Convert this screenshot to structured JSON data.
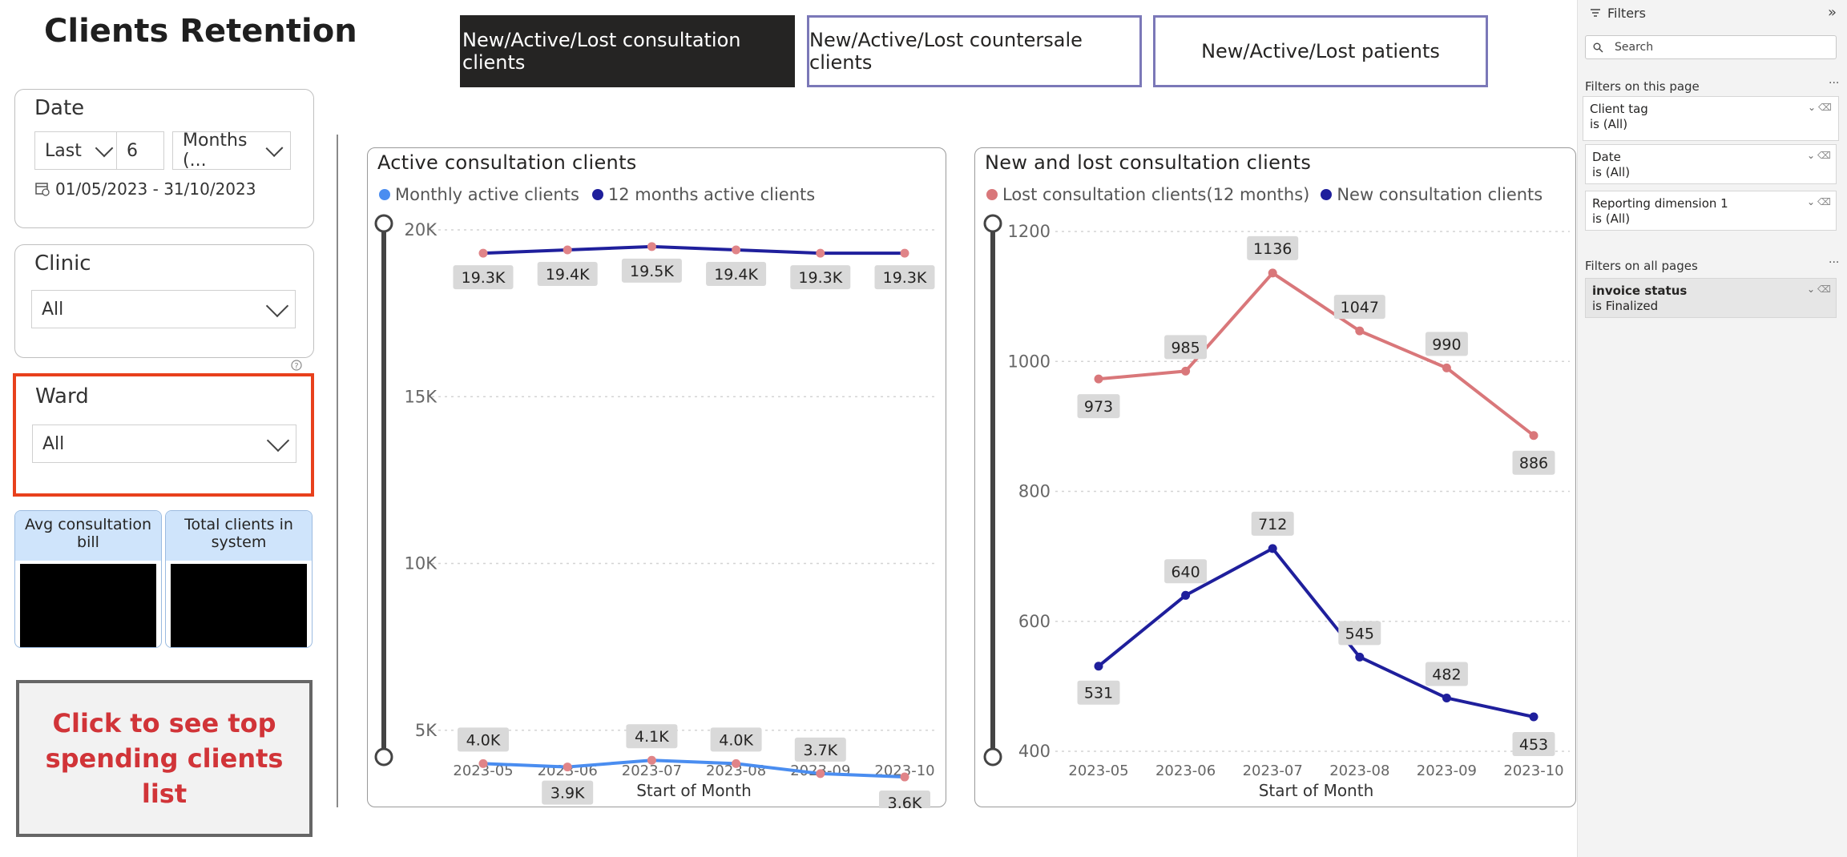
{
  "page_title": "Clients Retention",
  "nav_buttons": [
    {
      "label": "New/Active/Lost consultation clients",
      "active": true
    },
    {
      "label": "New/Active/Lost countersale clients",
      "active": false
    },
    {
      "label": "New/Active/Lost patients",
      "active": false
    }
  ],
  "date_slicer": {
    "label": "Date",
    "mode": "Last",
    "count": "6",
    "unit": "Months (...",
    "range": "01/05/2023 - 31/10/2023"
  },
  "clinic_slicer": {
    "label": "Clinic",
    "value": "All"
  },
  "ward_slicer": {
    "label": "Ward",
    "value": "All"
  },
  "kpis": [
    {
      "label": "Avg consultation bill"
    },
    {
      "label": "Total clients in system"
    }
  ],
  "cta_label": "Click to see top spending clients list",
  "filters_pane": {
    "title": "Filters",
    "search_placeholder": "Search",
    "page_section": "Filters on this page",
    "page_filters": [
      {
        "name": "Client tag",
        "state": "is (All)"
      },
      {
        "name": "Date",
        "state": "is (All)"
      },
      {
        "name": "Reporting dimension 1",
        "state": "is (All)"
      }
    ],
    "all_section": "Filters on all pages",
    "all_filters": [
      {
        "name": "invoice status",
        "state": "is Finalized"
      }
    ]
  },
  "colors": {
    "monthly": "#4a8df0",
    "twelve_month": "#1f1f9c",
    "lost": "#d9777a",
    "new": "#1f1f9c",
    "active_btn": "#252423",
    "highlight": "#e8401c"
  },
  "chart_data": [
    {
      "type": "line",
      "title": "Active consultation clients",
      "xlabel": "Start of Month",
      "ylabel": "",
      "categories": [
        "2023-05",
        "2023-06",
        "2023-07",
        "2023-08",
        "2023-09",
        "2023-10"
      ],
      "y_ticks": [
        "5K",
        "10K",
        "15K",
        "20K"
      ],
      "ylim": [
        0,
        20000
      ],
      "series": [
        {
          "name": "Monthly active clients",
          "values": [
            4000,
            3900,
            4100,
            4000,
            3700,
            3600
          ],
          "labels": [
            "4.0K",
            "3.9K",
            "4.1K",
            "4.0K",
            "3.7K",
            "3.6K"
          ]
        },
        {
          "name": "12 months active clients",
          "values": [
            19300,
            19400,
            19500,
            19400,
            19300,
            19300
          ],
          "labels": [
            "19.3K",
            "19.4K",
            "19.5K",
            "19.4K",
            "19.3K",
            "19.3K"
          ]
        }
      ],
      "legend": "top-left",
      "grid": true
    },
    {
      "type": "line",
      "title": "New and lost consultation clients",
      "xlabel": "Start of Month",
      "ylabel": "",
      "categories": [
        "2023-05",
        "2023-06",
        "2023-07",
        "2023-08",
        "2023-09",
        "2023-10"
      ],
      "y_ticks": [
        "400",
        "600",
        "800",
        "1000",
        "1200"
      ],
      "ylim": [
        400,
        1200
      ],
      "series": [
        {
          "name": "Lost consultation clients(12 months)",
          "values": [
            973,
            985,
            1136,
            1047,
            990,
            886
          ],
          "labels": [
            "973",
            "985",
            "1136",
            "1047",
            "990",
            "886"
          ]
        },
        {
          "name": "New consultation clients",
          "values": [
            531,
            640,
            712,
            545,
            482,
            453
          ],
          "labels": [
            "531",
            "640",
            "712",
            "545",
            "482",
            "453"
          ]
        }
      ],
      "legend": "top-left",
      "grid": true
    }
  ]
}
